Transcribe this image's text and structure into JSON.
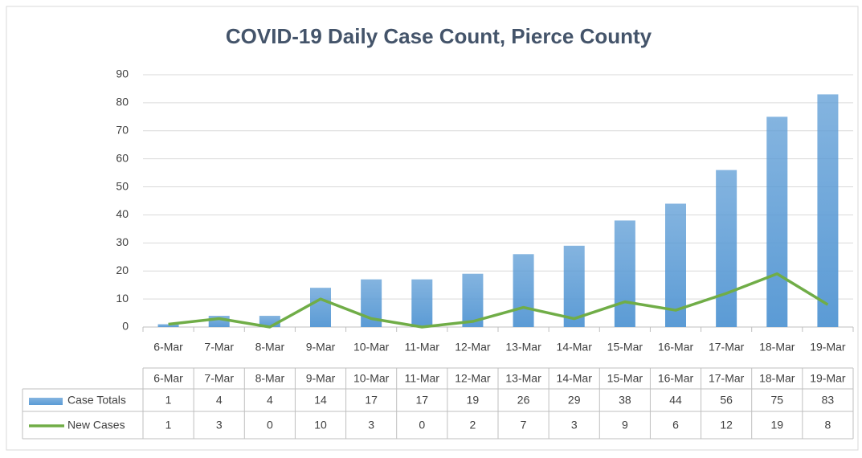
{
  "chart_data": {
    "type": "bar",
    "title": "COVID-19 Daily Case Count, Pierce County",
    "categories": [
      "6-Mar",
      "7-Mar",
      "8-Mar",
      "9-Mar",
      "10-Mar",
      "11-Mar",
      "12-Mar",
      "13-Mar",
      "14-Mar",
      "15-Mar",
      "16-Mar",
      "17-Mar",
      "18-Mar",
      "19-Mar"
    ],
    "series": [
      {
        "name": "Case Totals",
        "type": "bar",
        "color": "#5b9bd5",
        "values": [
          1,
          4,
          4,
          14,
          17,
          17,
          19,
          26,
          29,
          38,
          44,
          56,
          75,
          83
        ]
      },
      {
        "name": "New Cases",
        "type": "line",
        "color": "#70ad47",
        "values": [
          1,
          3,
          0,
          10,
          3,
          0,
          2,
          7,
          3,
          9,
          6,
          12,
          19,
          8
        ]
      }
    ],
    "ylim": [
      0,
      90
    ],
    "yticks": [
      0,
      10,
      20,
      30,
      40,
      50,
      60,
      70,
      80,
      90
    ],
    "grid": true,
    "data_table": true
  }
}
